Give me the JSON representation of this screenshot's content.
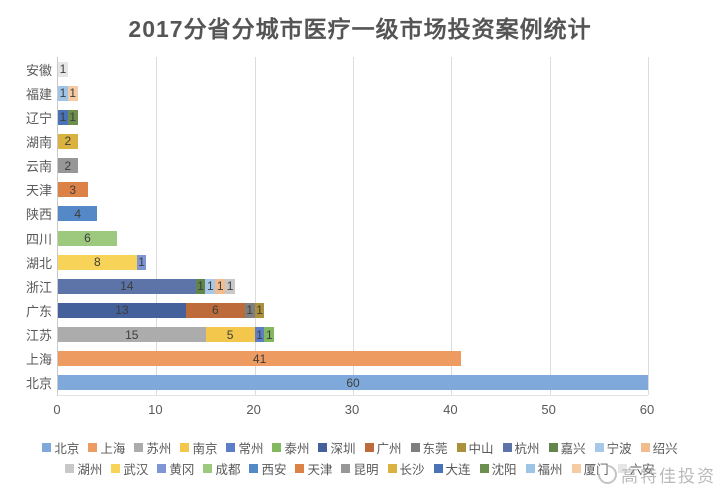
{
  "title": "2017分省分城市医疗一级市场投资案例统计",
  "watermark": "高特佳投资",
  "x_axis": {
    "ticks": [
      "0",
      "10",
      "20",
      "30",
      "40",
      "50",
      "60"
    ],
    "max": 60
  },
  "colors": {
    "grid": "#dcdcdc",
    "axis": "#c9c9c9",
    "title_text": "#555555",
    "label_text": "#595959",
    "bar_value_text": "#3d3d3d",
    "watermark_text": "#a9a9a9"
  },
  "city_colors": {
    "北京": "#7fa9da",
    "上海": "#ee9b62",
    "苏州": "#acacac",
    "南京": "#f3c74b",
    "常州": "#5d7ec6",
    "泰州": "#82b95f",
    "深圳": "#44619b",
    "广州": "#be6b3c",
    "东莞": "#7f7f7f",
    "中山": "#ac913c",
    "杭州": "#5c74a8",
    "嘉兴": "#61854b",
    "宁波": "#a8c8e9",
    "绍兴": "#f3bc8e",
    "湖州": "#c8c8c8",
    "武汉": "#f7d357",
    "黄冈": "#7e96d3",
    "成都": "#9dc97e",
    "西安": "#5488c7",
    "天津": "#dc8246",
    "昆明": "#979797",
    "长沙": "#d9b240",
    "大连": "#4a72b7",
    "沈阳": "#6c8f4f",
    "福州": "#9ec5e8",
    "厦门": "#f5cba4",
    "六安": "#e6e6e6"
  },
  "chart_data": {
    "type": "bar",
    "orientation": "horizontal",
    "stacked": true,
    "title": "2017分省分城市医疗一级市场投资案例统计",
    "xlabel": "",
    "ylabel": "",
    "xlim": [
      0,
      60
    ],
    "grid": "vertical",
    "legend_position": "bottom",
    "categories": [
      "安徽",
      "福建",
      "辽宁",
      "湖南",
      "云南",
      "天津",
      "陕西",
      "四川",
      "湖北",
      "浙江",
      "广东",
      "江苏",
      "上海",
      "北京"
    ],
    "rows": [
      {
        "province": "安徽",
        "segments": [
          {
            "city": "六安",
            "value": 1
          }
        ]
      },
      {
        "province": "福建",
        "segments": [
          {
            "city": "福州",
            "value": 1
          },
          {
            "city": "厦门",
            "value": 1
          }
        ]
      },
      {
        "province": "辽宁",
        "segments": [
          {
            "city": "大连",
            "value": 1
          },
          {
            "city": "沈阳",
            "value": 1
          }
        ]
      },
      {
        "province": "湖南",
        "segments": [
          {
            "city": "长沙",
            "value": 2
          }
        ]
      },
      {
        "province": "云南",
        "segments": [
          {
            "city": "昆明",
            "value": 2
          }
        ]
      },
      {
        "province": "天津",
        "segments": [
          {
            "city": "天津",
            "value": 3
          }
        ]
      },
      {
        "province": "陕西",
        "segments": [
          {
            "city": "西安",
            "value": 4
          }
        ]
      },
      {
        "province": "四川",
        "segments": [
          {
            "city": "成都",
            "value": 6
          }
        ]
      },
      {
        "province": "湖北",
        "segments": [
          {
            "city": "武汉",
            "value": 8
          },
          {
            "city": "黄冈",
            "value": 1
          }
        ]
      },
      {
        "province": "浙江",
        "segments": [
          {
            "city": "杭州",
            "value": 14
          },
          {
            "city": "嘉兴",
            "value": 1
          },
          {
            "city": "宁波",
            "value": 1
          },
          {
            "city": "绍兴",
            "value": 1
          },
          {
            "city": "湖州",
            "value": 1
          }
        ]
      },
      {
        "province": "广东",
        "segments": [
          {
            "city": "深圳",
            "value": 13
          },
          {
            "city": "广州",
            "value": 6
          },
          {
            "city": "东莞",
            "value": 1
          },
          {
            "city": "中山",
            "value": 1
          }
        ]
      },
      {
        "province": "江苏",
        "segments": [
          {
            "city": "苏州",
            "value": 15
          },
          {
            "city": "南京",
            "value": 5
          },
          {
            "city": "常州",
            "value": 1
          },
          {
            "city": "泰州",
            "value": 1
          }
        ]
      },
      {
        "province": "上海",
        "segments": [
          {
            "city": "上海",
            "value": 41
          }
        ]
      },
      {
        "province": "北京",
        "segments": [
          {
            "city": "北京",
            "value": 60
          }
        ]
      }
    ]
  },
  "legend": {
    "row1": [
      "北京",
      "上海",
      "苏州",
      "南京",
      "常州",
      "泰州",
      "深圳",
      "广州",
      "东莞",
      "中山",
      "杭州",
      "嘉兴",
      "宁波",
      "绍兴"
    ],
    "row2": [
      "湖州",
      "武汉",
      "黄冈",
      "成都",
      "西安",
      "天津",
      "昆明",
      "长沙",
      "大连",
      "沈阳",
      "福州",
      "厦门",
      "六安"
    ]
  }
}
